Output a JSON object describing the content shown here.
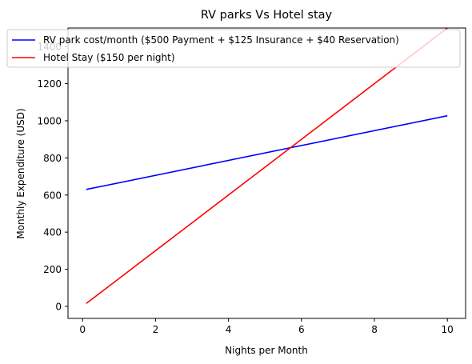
{
  "chart_data": {
    "type": "line",
    "title": "RV parks Vs Hotel stay",
    "xlabel": "Nights per Month",
    "ylabel": "Monthly Expenditure (USD)",
    "xlim": [
      -0.4,
      10.5
    ],
    "ylim": [
      -65,
      1500
    ],
    "x_ticks": [
      0,
      2,
      4,
      6,
      8,
      10
    ],
    "y_ticks": [
      0,
      200,
      400,
      600,
      800,
      1000,
      1200,
      1400
    ],
    "grid": false,
    "legend_position": "upper-left",
    "series": [
      {
        "name": "RV park cost/month ($500 Payment + $125 Insurance + $40 Reservation)",
        "color": "#0000ff",
        "x": [
          0.1,
          10
        ],
        "y": [
          630,
          1027
        ]
      },
      {
        "name": "Hotel Stay ($150 per night)",
        "color": "#ff0000",
        "x": [
          0.1,
          10
        ],
        "y": [
          15,
          1500
        ]
      }
    ]
  }
}
